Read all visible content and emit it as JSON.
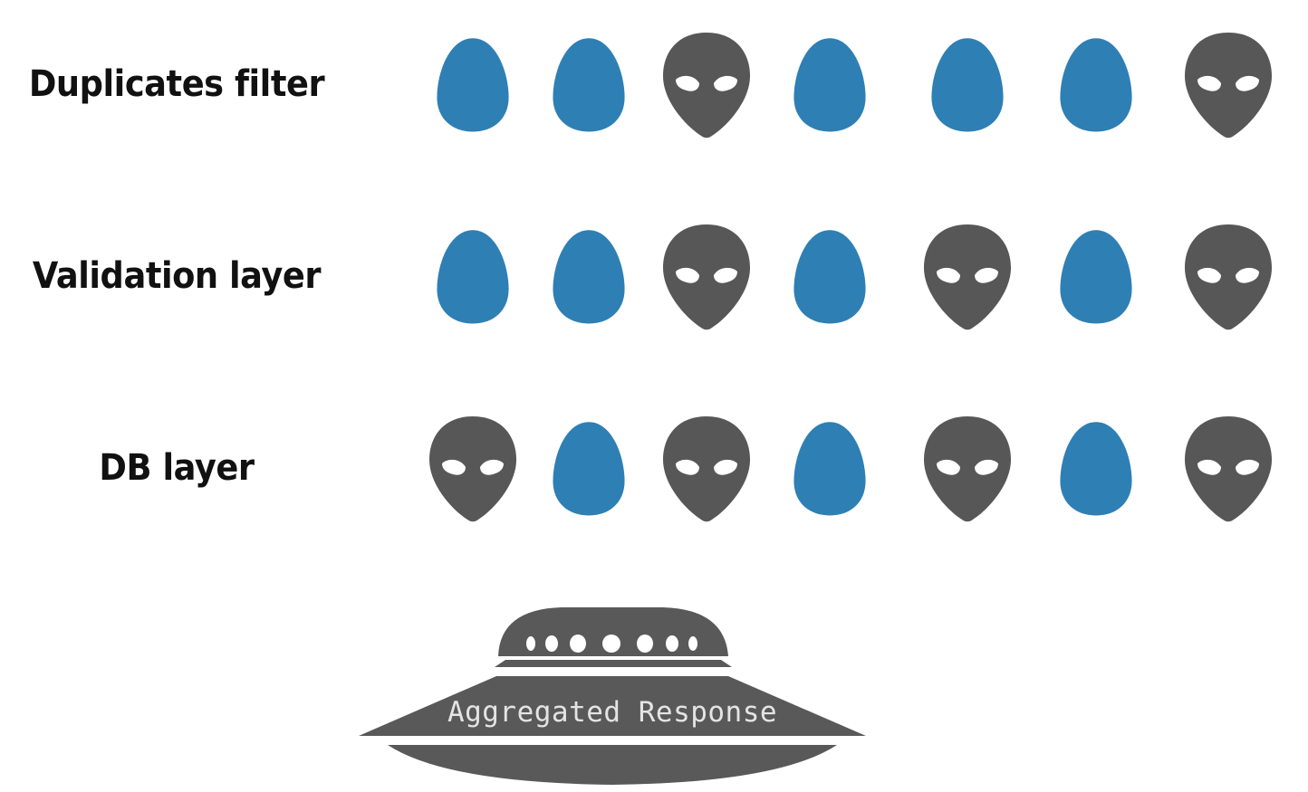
{
  "colors": {
    "egg": "#2e7fb4",
    "alien": "#575757",
    "alien_eyes": "#ffffff",
    "ufo": "#595959",
    "ufo_text": "#e4e4e4"
  },
  "rows": [
    {
      "label": "Duplicates filter",
      "tokens": [
        "egg-icon",
        "egg-icon",
        "alien-icon",
        "egg-icon",
        "egg-icon",
        "egg-icon",
        "alien-icon"
      ]
    },
    {
      "label": "Validation layer",
      "tokens": [
        "egg-icon",
        "egg-icon",
        "alien-icon",
        "egg-icon",
        "alien-icon",
        "egg-icon",
        "alien-icon"
      ]
    },
    {
      "label": "DB layer",
      "tokens": [
        "alien-icon",
        "egg-icon",
        "alien-icon",
        "egg-icon",
        "alien-icon",
        "egg-icon",
        "alien-icon"
      ]
    }
  ],
  "ufo": {
    "icon": "ufo-icon",
    "label": "Aggregated Response"
  }
}
